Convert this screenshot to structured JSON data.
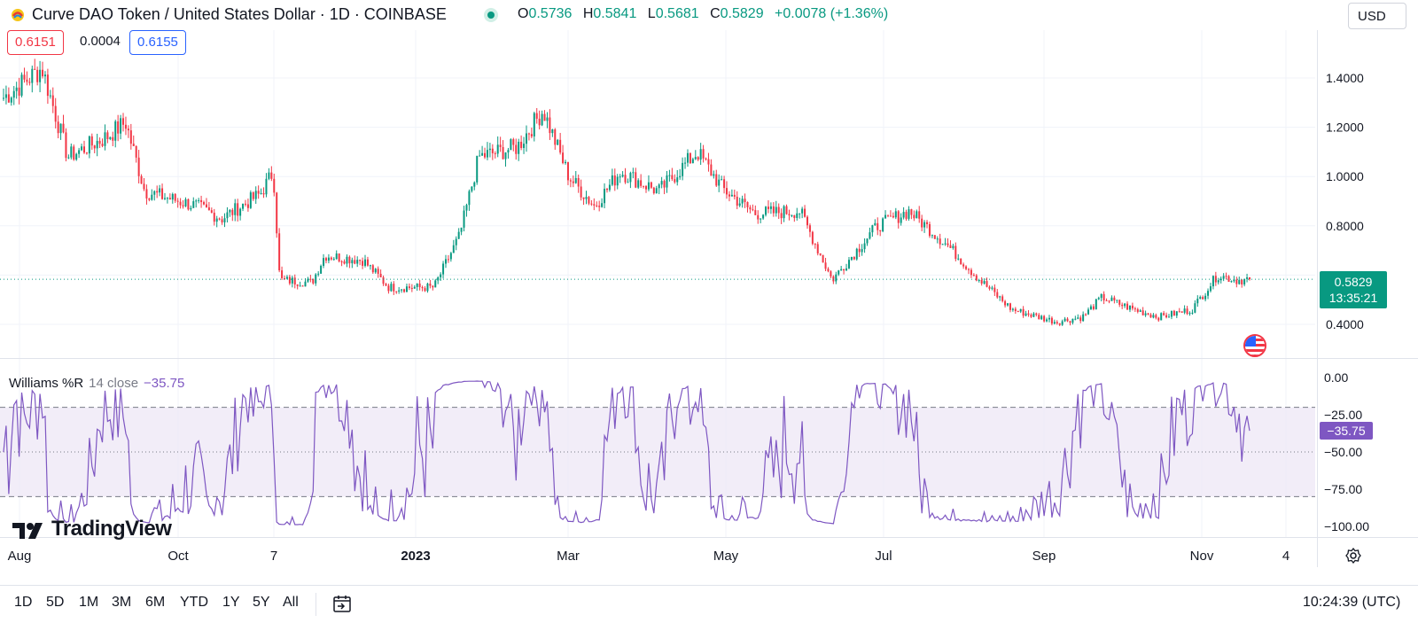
{
  "header": {
    "title": "Curve DAO Token / United States Dollar · 1D · COINBASE",
    "ohlc": [
      {
        "k": "O",
        "v": "0.5736"
      },
      {
        "k": "H",
        "v": "0.5841"
      },
      {
        "k": "L",
        "v": "0.5681"
      },
      {
        "k": "C",
        "v": "0.5829"
      },
      {
        "k": "",
        "v": "+0.0078 (+1.36%)"
      }
    ],
    "currency": "USD",
    "bid": "0.6151",
    "spread": "0.0004",
    "ask": "0.6155"
  },
  "colors": {
    "up": "#089981",
    "down": "#f23645",
    "indicator": "#7e57c2",
    "band_fill": "#ede7f6"
  },
  "price_tag": {
    "price": "0.5829",
    "countdown": "13:35:21"
  },
  "indicator": {
    "name": "Williams %R",
    "params": "14 close",
    "value": "−35.75",
    "tag": "−35.75",
    "upper_band": -20,
    "lower_band": -80,
    "mid_band": -50
  },
  "chart_data": {
    "type": "candlestick",
    "title": "Curve DAO Token / United States Dollar · 1D · COINBASE",
    "price_axis": {
      "ticks": [
        0.4,
        0.6,
        0.8,
        1.0,
        1.2,
        1.4
      ],
      "tick_labels": [
        "0.4000",
        "0.6000",
        "0.8000",
        "1.0000",
        "1.2000",
        "1.4000"
      ],
      "range": [
        0.32,
        1.62
      ]
    },
    "indicator_axis": {
      "ticks": [
        0,
        -25,
        -50,
        -75,
        -100
      ],
      "tick_labels": [
        "0.00",
        "−25.00",
        "−50.00",
        "−75.00",
        "−100.00"
      ],
      "range": [
        -100,
        0
      ]
    },
    "time_axis_labels": [
      "Aug",
      "Oct",
      "7",
      "2023",
      "Mar",
      "May",
      "Jul",
      "Sep",
      "Nov",
      "4"
    ],
    "price_path_anchors": [
      {
        "t": 0.0,
        "p": 1.32
      },
      {
        "t": 0.03,
        "p": 1.44
      },
      {
        "t": 0.05,
        "p": 1.08
      },
      {
        "t": 0.08,
        "p": 1.16
      },
      {
        "t": 0.095,
        "p": 1.22
      },
      {
        "t": 0.11,
        "p": 0.94
      },
      {
        "t": 0.15,
        "p": 0.88
      },
      {
        "t": 0.17,
        "p": 0.83
      },
      {
        "t": 0.2,
        "p": 0.93
      },
      {
        "t": 0.21,
        "p": 1.02
      },
      {
        "t": 0.215,
        "p": 0.58
      },
      {
        "t": 0.24,
        "p": 0.57
      },
      {
        "t": 0.25,
        "p": 0.68
      },
      {
        "t": 0.28,
        "p": 0.66
      },
      {
        "t": 0.3,
        "p": 0.55
      },
      {
        "t": 0.335,
        "p": 0.55
      },
      {
        "t": 0.355,
        "p": 0.76
      },
      {
        "t": 0.37,
        "p": 1.08
      },
      {
        "t": 0.4,
        "p": 1.12
      },
      {
        "t": 0.42,
        "p": 1.27
      },
      {
        "t": 0.44,
        "p": 1.0
      },
      {
        "t": 0.46,
        "p": 0.88
      },
      {
        "t": 0.48,
        "p": 1.02
      },
      {
        "t": 0.51,
        "p": 0.94
      },
      {
        "t": 0.54,
        "p": 1.1
      },
      {
        "t": 0.56,
        "p": 0.95
      },
      {
        "t": 0.585,
        "p": 0.85
      },
      {
        "t": 0.62,
        "p": 0.86
      },
      {
        "t": 0.645,
        "p": 0.58
      },
      {
        "t": 0.68,
        "p": 0.8
      },
      {
        "t": 0.705,
        "p": 0.86
      },
      {
        "t": 0.735,
        "p": 0.72
      },
      {
        "t": 0.76,
        "p": 0.58
      },
      {
        "t": 0.785,
        "p": 0.46
      },
      {
        "t": 0.82,
        "p": 0.41
      },
      {
        "t": 0.84,
        "p": 0.43
      },
      {
        "t": 0.855,
        "p": 0.51
      },
      {
        "t": 0.88,
        "p": 0.46
      },
      {
        "t": 0.9,
        "p": 0.43
      },
      {
        "t": 0.925,
        "p": 0.46
      },
      {
        "t": 0.945,
        "p": 0.6
      },
      {
        "t": 0.96,
        "p": 0.58
      },
      {
        "t": 0.97,
        "p": 0.5829
      }
    ]
  },
  "time_ranges": [
    "1D",
    "5D",
    "1M",
    "3M",
    "6M",
    "YTD",
    "1Y",
    "5Y",
    "All"
  ],
  "clock": "10:24:39 (UTC)",
  "brand": "TradingView"
}
